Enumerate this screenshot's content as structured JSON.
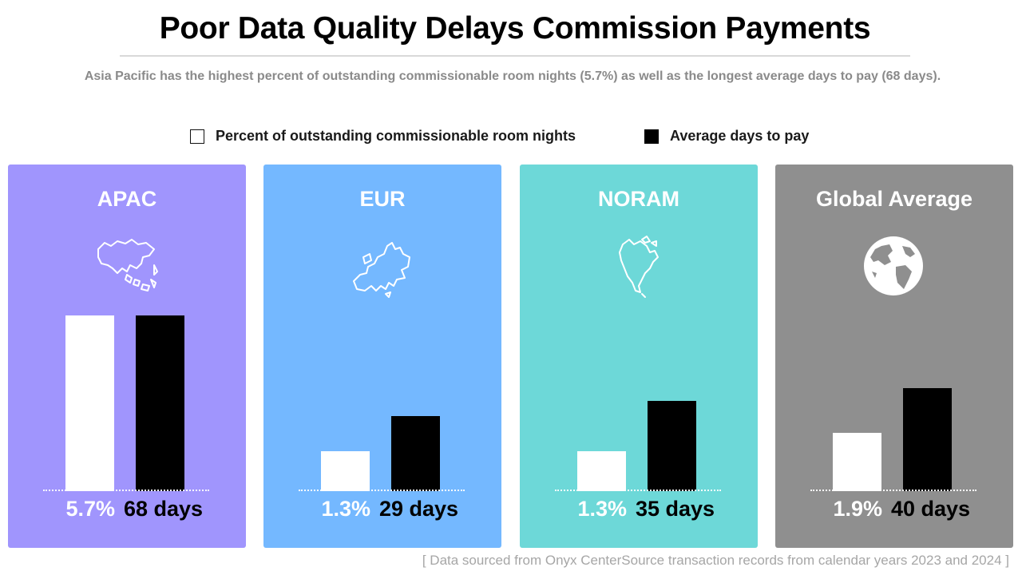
{
  "header": {
    "title": "Poor Data Quality Delays Commission Payments",
    "subtitle": "Asia Pacific has the highest percent of outstanding commissionable room nights (5.7%) as well as the longest average days to pay (68 days)."
  },
  "legend": {
    "items": [
      {
        "label": "Percent of outstanding commissionable room nights",
        "swatch": "outline"
      },
      {
        "label": "Average days to pay",
        "swatch": "solid"
      }
    ]
  },
  "panels": [
    {
      "title": "APAC",
      "icon": "asia-map-icon",
      "color": "#a095fd",
      "pct_label": "5.7%",
      "days_label": "68 days"
    },
    {
      "title": "EUR",
      "icon": "europe-map-icon",
      "color": "#74b8ff",
      "pct_label": "1.3%",
      "days_label": "29 days"
    },
    {
      "title": "NORAM",
      "icon": "north-america-map-icon",
      "color": "#6dd8d8",
      "pct_label": "1.3%",
      "days_label": "35 days"
    },
    {
      "title": "Global Average",
      "icon": "globe-icon",
      "color": "#8f8f8f",
      "pct_label": "1.9%",
      "days_label": "40 days"
    }
  ],
  "chart_data": {
    "type": "bar",
    "categories": [
      "APAC",
      "EUR",
      "NORAM",
      "Global Average"
    ],
    "series": [
      {
        "name": "Percent of outstanding commissionable room nights",
        "unit": "%",
        "values": [
          5.7,
          1.3,
          1.3,
          1.9
        ],
        "color": "#ffffff"
      },
      {
        "name": "Average days to pay",
        "unit": "days",
        "values": [
          68,
          29,
          35,
          40
        ],
        "color": "#000000"
      }
    ],
    "legend": "top-center",
    "grid": false
  },
  "footer": {
    "source": "[ Data sourced from Onyx CenterSource transaction records from calendar years 2023 and 2024 ]"
  }
}
